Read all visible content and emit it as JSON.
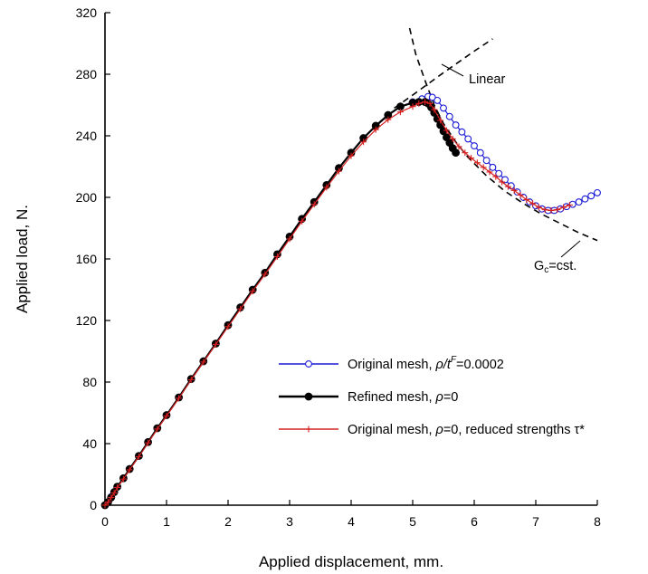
{
  "chart_data": {
    "type": "line",
    "xlabel": "Applied displacement,  mm.",
    "ylabel": "Applied load,  N.",
    "xlim": [
      0,
      8
    ],
    "ylim": [
      0,
      320
    ],
    "xticks": [
      0,
      1,
      2,
      3,
      4,
      5,
      6,
      7,
      8
    ],
    "yticks": [
      0,
      40,
      80,
      120,
      160,
      200,
      240,
      280,
      320
    ],
    "grid": false,
    "legend_position": "bottom-right",
    "series": [
      {
        "name_parts": [
          "Original mesh, ",
          "ρ/t",
          "F",
          "=0.0002"
        ],
        "color": "#1a1ad6",
        "marker": "open-circle",
        "line_width": 1.2,
        "points": [
          [
            0,
            0
          ],
          [
            0.05,
            2
          ],
          [
            0.1,
            5.5
          ],
          [
            0.15,
            8.5
          ],
          [
            0.2,
            12
          ],
          [
            0.3,
            17.5
          ],
          [
            0.4,
            23.5
          ],
          [
            0.55,
            32
          ],
          [
            0.7,
            41
          ],
          [
            0.85,
            50
          ],
          [
            1.0,
            58.5
          ],
          [
            1.2,
            70
          ],
          [
            1.4,
            82
          ],
          [
            1.6,
            93.5
          ],
          [
            1.8,
            105
          ],
          [
            2.0,
            117
          ],
          [
            2.2,
            128.5
          ],
          [
            2.4,
            140
          ],
          [
            2.6,
            151
          ],
          [
            2.8,
            163
          ],
          [
            3.0,
            174.5
          ],
          [
            3.2,
            186
          ],
          [
            3.4,
            197
          ],
          [
            3.6,
            208
          ],
          [
            3.8,
            219
          ],
          [
            4.0,
            229
          ],
          [
            4.2,
            238.5
          ],
          [
            4.4,
            246.5
          ],
          [
            4.6,
            253.5
          ],
          [
            4.8,
            259
          ],
          [
            5.0,
            262
          ],
          [
            5.15,
            264
          ],
          [
            5.25,
            265.5
          ],
          [
            5.32,
            265
          ],
          [
            5.4,
            263
          ],
          [
            5.5,
            258
          ],
          [
            5.6,
            252.5
          ],
          [
            5.7,
            247
          ],
          [
            5.8,
            242.5
          ],
          [
            5.9,
            238
          ],
          [
            6.0,
            233.5
          ],
          [
            6.1,
            229
          ],
          [
            6.2,
            224
          ],
          [
            6.3,
            219.5
          ],
          [
            6.4,
            215.5
          ],
          [
            6.5,
            211.5
          ],
          [
            6.6,
            207.5
          ],
          [
            6.7,
            203.5
          ],
          [
            6.8,
            200
          ],
          [
            6.9,
            197
          ],
          [
            7.0,
            194.5
          ],
          [
            7.1,
            192.5
          ],
          [
            7.2,
            191.5
          ],
          [
            7.3,
            191.5
          ],
          [
            7.4,
            192.5
          ],
          [
            7.5,
            194
          ],
          [
            7.6,
            195.5
          ],
          [
            7.7,
            197
          ],
          [
            7.8,
            199
          ],
          [
            7.9,
            201
          ],
          [
            8.0,
            203
          ]
        ]
      },
      {
        "name_parts": [
          "Refined mesh, ",
          "ρ",
          "",
          "=0"
        ],
        "color": "#000000",
        "marker": "filled-circle",
        "line_width": 2.2,
        "points": [
          [
            0,
            0
          ],
          [
            0.05,
            2
          ],
          [
            0.1,
            5
          ],
          [
            0.15,
            8.5
          ],
          [
            0.2,
            12
          ],
          [
            0.3,
            17.5
          ],
          [
            0.4,
            23.5
          ],
          [
            0.55,
            32
          ],
          [
            0.7,
            41
          ],
          [
            0.85,
            50
          ],
          [
            1.0,
            58.5
          ],
          [
            1.2,
            70
          ],
          [
            1.4,
            82
          ],
          [
            1.6,
            93.5
          ],
          [
            1.8,
            105
          ],
          [
            2.0,
            117
          ],
          [
            2.2,
            128.5
          ],
          [
            2.4,
            140
          ],
          [
            2.6,
            151
          ],
          [
            2.8,
            163
          ],
          [
            3.0,
            174.5
          ],
          [
            3.2,
            186
          ],
          [
            3.4,
            197
          ],
          [
            3.6,
            208
          ],
          [
            3.8,
            219
          ],
          [
            4.0,
            229
          ],
          [
            4.2,
            238.5
          ],
          [
            4.4,
            246.5
          ],
          [
            4.6,
            253.5
          ],
          [
            4.8,
            259
          ],
          [
            5.0,
            261.5
          ],
          [
            5.1,
            262
          ],
          [
            5.2,
            262
          ],
          [
            5.25,
            261
          ],
          [
            5.3,
            258.5
          ],
          [
            5.35,
            255
          ],
          [
            5.4,
            251
          ],
          [
            5.45,
            247
          ],
          [
            5.5,
            243
          ],
          [
            5.55,
            239
          ],
          [
            5.6,
            235.5
          ],
          [
            5.65,
            232
          ],
          [
            5.7,
            229
          ]
        ]
      },
      {
        "name_parts": [
          "Original mesh, ",
          "ρ",
          "",
          "=0, reduced strengths τ*"
        ],
        "color": "#d42020",
        "marker": "plus",
        "line_width": 1.2,
        "points": [
          [
            0,
            0
          ],
          [
            0.05,
            2
          ],
          [
            0.1,
            5
          ],
          [
            0.15,
            8
          ],
          [
            0.2,
            11.5
          ],
          [
            0.3,
            17
          ],
          [
            0.4,
            23
          ],
          [
            0.55,
            31.5
          ],
          [
            0.7,
            40.5
          ],
          [
            0.85,
            49.5
          ],
          [
            1.0,
            58
          ],
          [
            1.2,
            69.5
          ],
          [
            1.4,
            81.5
          ],
          [
            1.6,
            93
          ],
          [
            1.8,
            104.5
          ],
          [
            2.0,
            116
          ],
          [
            2.2,
            127.5
          ],
          [
            2.4,
            139
          ],
          [
            2.6,
            150
          ],
          [
            2.8,
            161.5
          ],
          [
            3.0,
            173
          ],
          [
            3.2,
            184.5
          ],
          [
            3.4,
            195.5
          ],
          [
            3.6,
            206.5
          ],
          [
            3.8,
            217
          ],
          [
            4.0,
            227
          ],
          [
            4.2,
            236
          ],
          [
            4.4,
            244
          ],
          [
            4.6,
            250.5
          ],
          [
            4.8,
            255.5
          ],
          [
            5.0,
            259
          ],
          [
            5.1,
            261
          ],
          [
            5.2,
            262
          ],
          [
            5.28,
            261
          ],
          [
            5.35,
            257
          ],
          [
            5.45,
            250
          ],
          [
            5.55,
            243.5
          ],
          [
            5.65,
            238
          ],
          [
            5.75,
            233
          ],
          [
            5.85,
            229
          ],
          [
            5.95,
            225.5
          ],
          [
            6.05,
            222.5
          ],
          [
            6.15,
            219.5
          ],
          [
            6.25,
            216.5
          ],
          [
            6.35,
            213.5
          ],
          [
            6.45,
            210
          ],
          [
            6.55,
            207
          ],
          [
            6.65,
            204.5
          ],
          [
            6.75,
            201.5
          ],
          [
            6.85,
            198.5
          ],
          [
            6.95,
            196
          ],
          [
            7.05,
            193.5
          ],
          [
            7.15,
            192
          ],
          [
            7.25,
            191.5
          ],
          [
            7.35,
            192
          ],
          [
            7.45,
            193.5
          ],
          [
            7.55,
            195
          ]
        ]
      }
    ],
    "reference_curves": [
      {
        "label": "Linear",
        "style": "dashed",
        "points": [
          [
            4.7,
            258
          ],
          [
            5.0,
            266.5
          ],
          [
            5.5,
            281
          ],
          [
            6.0,
            295
          ],
          [
            6.3,
            303
          ]
        ]
      },
      {
        "label_parts": [
          "G",
          "c",
          "=cst."
        ],
        "style": "dashed",
        "points": [
          [
            4.95,
            310
          ],
          [
            5.05,
            293
          ],
          [
            5.2,
            276
          ],
          [
            5.35,
            260
          ],
          [
            5.5,
            248
          ],
          [
            5.7,
            236
          ],
          [
            5.9,
            226
          ],
          [
            6.2,
            214
          ],
          [
            6.5,
            204
          ],
          [
            6.8,
            196
          ],
          [
            7.1,
            189
          ],
          [
            7.4,
            183
          ],
          [
            7.7,
            177
          ],
          [
            8.0,
            172
          ]
        ]
      }
    ]
  }
}
